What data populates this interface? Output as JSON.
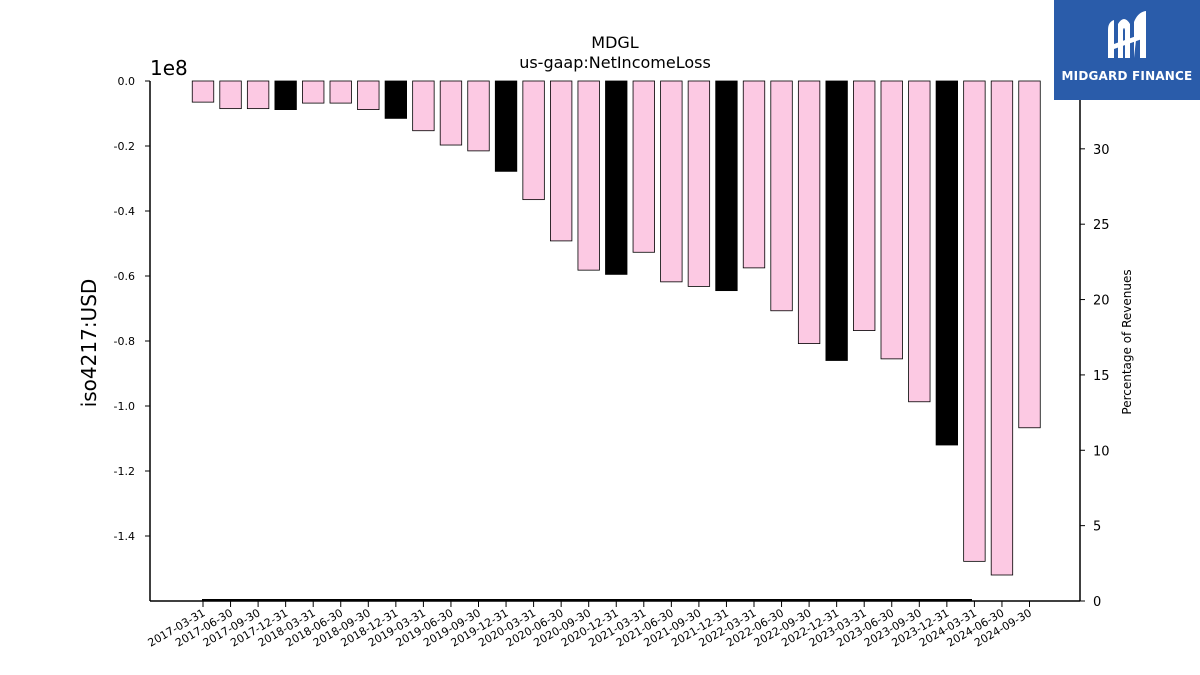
{
  "logo": {
    "text": "MIDGARD FINANCE",
    "icon": "mf-logo-icon",
    "bg_color": "#2a5caa"
  },
  "chart_data": {
    "type": "bar",
    "title": "MDGL",
    "subtitle": "us-gaap:NetIncomeLoss",
    "ylabel": "iso4217:USD",
    "y_offset_label": "1e8",
    "y2label": "Percentage of Revenues",
    "ylim": [
      -1.6,
      0.0
    ],
    "y_scale": 100000000.0,
    "yticks": [
      0.0,
      -0.2,
      -0.4,
      -0.6,
      -0.8,
      -1.0,
      -1.2,
      -1.4
    ],
    "y2lim": [
      0,
      34.5
    ],
    "y2ticks": [
      0,
      5,
      10,
      15,
      20,
      25,
      30
    ],
    "categories": [
      "2017-03-31",
      "2017-06-30",
      "2017-09-30",
      "2017-12-31",
      "2018-03-31",
      "2018-06-30",
      "2018-09-30",
      "2018-12-31",
      "2019-03-31",
      "2019-06-30",
      "2019-09-30",
      "2019-12-31",
      "2020-03-31",
      "2020-06-30",
      "2020-09-30",
      "2020-12-31",
      "2021-03-31",
      "2021-06-30",
      "2021-09-30",
      "2021-12-31",
      "2022-03-31",
      "2022-06-30",
      "2022-09-30",
      "2022-12-31",
      "2023-03-31",
      "2023-06-30",
      "2023-09-30",
      "2023-12-31",
      "2024-03-31",
      "2024-06-30",
      "2024-09-30"
    ],
    "values": [
      -0.065,
      -0.085,
      -0.085,
      -0.088,
      -0.068,
      -0.068,
      -0.088,
      -0.115,
      -0.153,
      -0.197,
      -0.215,
      -0.278,
      -0.365,
      -0.492,
      -0.582,
      -0.595,
      -0.527,
      -0.618,
      -0.632,
      -0.645,
      -0.575,
      -0.707,
      -0.808,
      -0.86,
      -0.768,
      -0.855,
      -0.987,
      -1.12,
      -1.478,
      -1.52,
      -1.067
    ],
    "bar_colors": [
      "#fcc9e3",
      "#fcc9e3",
      "#fcc9e3",
      "#000000",
      "#fcc9e3",
      "#fcc9e3",
      "#fcc9e3",
      "#000000",
      "#fcc9e3",
      "#fcc9e3",
      "#fcc9e3",
      "#000000",
      "#fcc9e3",
      "#fcc9e3",
      "#fcc9e3",
      "#000000",
      "#fcc9e3",
      "#fcc9e3",
      "#fcc9e3",
      "#000000",
      "#fcc9e3",
      "#fcc9e3",
      "#fcc9e3",
      "#000000",
      "#fcc9e3",
      "#fcc9e3",
      "#fcc9e3",
      "#000000",
      "#fcc9e3",
      "#fcc9e3",
      "#fcc9e3"
    ],
    "colors": {
      "quarterly": "#fcc9e3",
      "annual": "#000000",
      "edge": "#000000"
    },
    "grid": false,
    "legend": "none"
  }
}
